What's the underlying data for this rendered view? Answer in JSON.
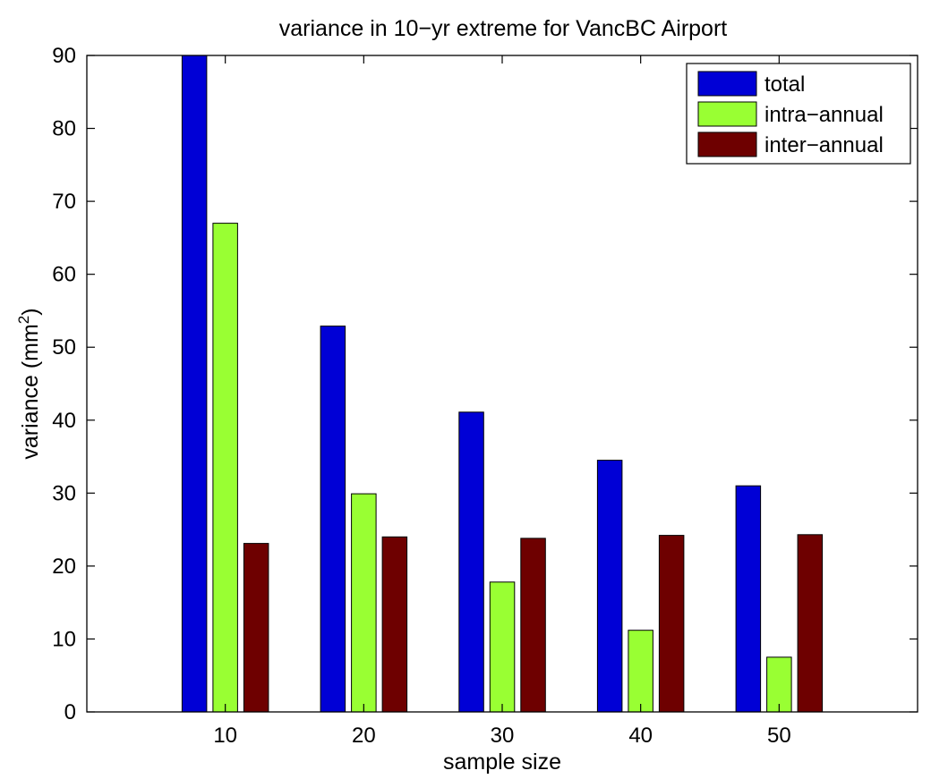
{
  "chart_data": {
    "type": "bar",
    "title": "variance in 10−yr extreme for VancBC Airport",
    "xlabel": "sample size",
    "ylabel": "variance (mm",
    "ylabel_superscript": "2",
    "ylabel_suffix": ")",
    "categories": [
      "10",
      "20",
      "30",
      "40",
      "50"
    ],
    "x": [
      10,
      20,
      30,
      40,
      50
    ],
    "xlim": [
      0,
      60
    ],
    "ylim": [
      0,
      90
    ],
    "yticks": [
      0,
      10,
      20,
      30,
      40,
      50,
      60,
      70,
      80,
      90
    ],
    "grid": false,
    "legend_position": "top-right",
    "series": [
      {
        "name": "total",
        "color": "#0000d6",
        "values": [
          90,
          52.9,
          41.1,
          34.5,
          31.0
        ]
      },
      {
        "name": "intra−annual",
        "color": "#99ff33",
        "values": [
          67.0,
          29.9,
          17.8,
          11.2,
          7.5
        ]
      },
      {
        "name": "inter−annual",
        "color": "#6e0000",
        "values": [
          23.1,
          24.0,
          23.8,
          24.2,
          24.3
        ]
      }
    ]
  }
}
